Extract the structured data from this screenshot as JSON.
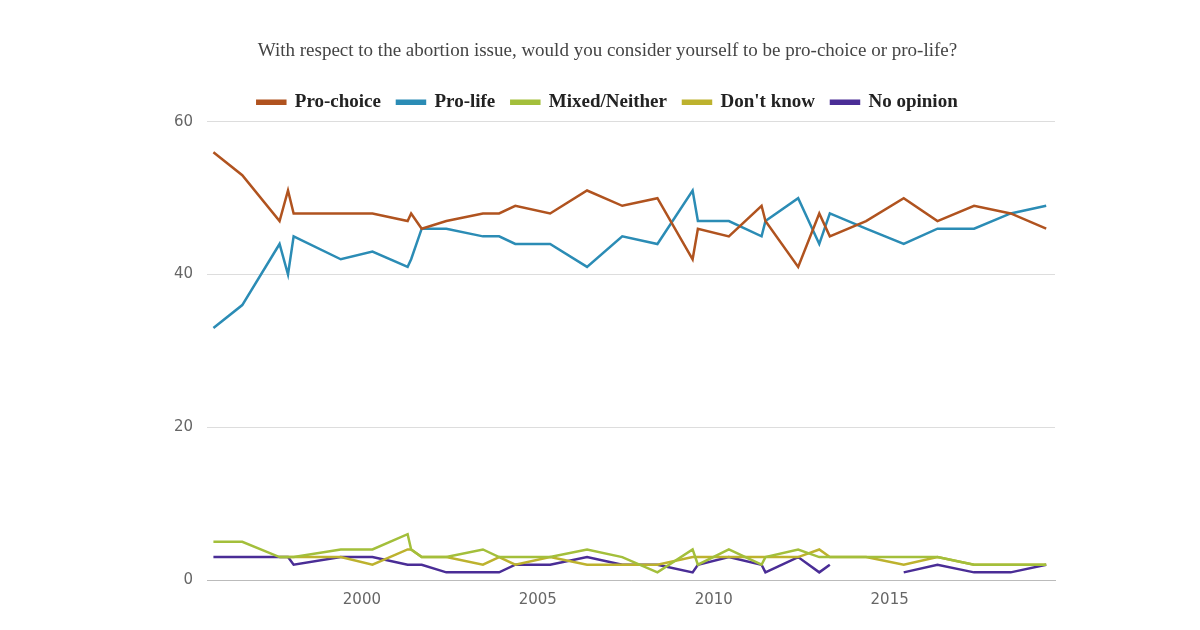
{
  "chart_data": {
    "type": "line",
    "title": "With respect to the abortion issue, would you consider yourself to be pro-choice or pro-life?",
    "x": [
      1995.78,
      1996.6,
      1997.66,
      1997.9,
      1998.06,
      1999.4,
      2000.3,
      2001.3,
      2001.4,
      2001.7,
      2002.4,
      2003.44,
      2003.9,
      2004.36,
      2005.35,
      2006.4,
      2007.4,
      2008.4,
      2009.4,
      2009.55,
      2010.43,
      2011.36,
      2011.47,
      2012.4,
      2013.0,
      2013.3,
      2014.33,
      2015.4,
      2016.36,
      2017.4,
      2018.44,
      2019.45
    ],
    "series": [
      {
        "name": "Pro-choice",
        "color": "#b0531f",
        "values": [
          56,
          53,
          47,
          51,
          48,
          48,
          48,
          47,
          48,
          46,
          47,
          48,
          48,
          49,
          48,
          51,
          49,
          50,
          42,
          46,
          45,
          49,
          47,
          41,
          48,
          45,
          47,
          50,
          47,
          49,
          48,
          46
        ]
      },
      {
        "name": "Pro-life",
        "color": "#2b8cb5",
        "values": [
          33,
          36,
          44,
          40,
          45,
          42,
          43,
          41,
          42,
          46,
          46,
          45,
          45,
          44,
          44,
          41,
          45,
          44,
          51,
          47,
          47,
          45,
          47,
          50,
          44,
          48,
          46,
          44,
          46,
          46,
          48,
          49
        ]
      },
      {
        "name": "Mixed/Neither",
        "color": "#a3bf3b",
        "values": [
          5,
          5,
          3,
          3,
          3,
          4,
          4,
          6,
          4,
          3,
          3,
          4,
          3,
          3,
          3,
          4,
          3,
          1,
          4,
          2,
          4,
          2,
          3,
          4,
          3,
          3,
          3,
          3,
          3,
          2,
          2,
          2
        ]
      },
      {
        "name": "Don't know",
        "color": "#bdb22e",
        "values": [
          null,
          null,
          3,
          3,
          3,
          3,
          2,
          4,
          4,
          3,
          3,
          2,
          3,
          2,
          3,
          2,
          2,
          2,
          3,
          3,
          3,
          3,
          3,
          3,
          4,
          3,
          3,
          2,
          3,
          2,
          2,
          2
        ]
      },
      {
        "name": "No opinion",
        "color": "#4a2d96",
        "values": [
          3,
          3,
          3,
          3,
          2,
          3,
          3,
          2,
          2,
          2,
          1,
          1,
          1,
          2,
          2,
          3,
          2,
          2,
          1,
          2,
          3,
          2,
          1,
          3,
          1,
          2,
          null,
          1,
          2,
          1,
          1,
          2
        ]
      }
    ],
    "xlim": [
      1995.6,
      2019.7
    ],
    "xticks": [
      2000,
      2005,
      2010,
      2015
    ],
    "ylim": [
      0,
      60
    ],
    "yticks": [
      0,
      20,
      40,
      60
    ],
    "grid": "y",
    "legend": "top"
  }
}
